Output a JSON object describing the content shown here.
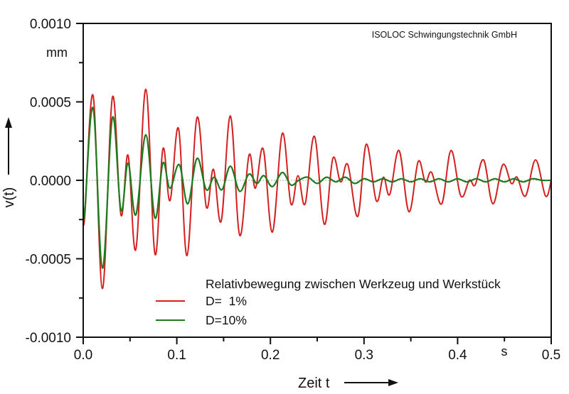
{
  "chart_data": {
    "type": "line",
    "title": "",
    "credit": "ISOLOC Schwingungstechnik GmbH",
    "xlabel": "Zeit t",
    "xunit": "s",
    "ylabel": "v(t)",
    "yunit": "mm",
    "xlim": [
      0.0,
      0.5
    ],
    "ylim": [
      -0.001,
      0.001
    ],
    "x_ticks": [
      0.0,
      0.1,
      0.2,
      0.3,
      0.4,
      0.5
    ],
    "x_tick_labels": [
      "0.0",
      "0.1",
      "0.2",
      "0.3",
      "0.4",
      "0.5"
    ],
    "x_minor_ticks": [
      0.05,
      0.15,
      0.25,
      0.35,
      0.45
    ],
    "y_ticks": [
      0.001,
      0.0005,
      0.0,
      -0.0005,
      -0.001
    ],
    "y_tick_labels": [
      "0.0010",
      "0.0005",
      "0.0000",
      "-0.0005",
      "-0.0010"
    ],
    "y_minor_ticks": [
      0.00075,
      0.00025,
      -0.00025,
      -0.00075
    ],
    "zero_line": true,
    "grid": false,
    "legend": {
      "title": "Relativbewegung zwischen Werkzeug und Werkstück",
      "position": "lower center",
      "entries": [
        "D=  1%",
        "D=10%"
      ]
    },
    "series": [
      {
        "name": "D=  1%",
        "color": "#d42020",
        "t": [
          0.0,
          0.0015,
          0.0106,
          0.0205,
          0.0312,
          0.0403,
          0.0479,
          0.0562,
          0.0669,
          0.0767,
          0.0851,
          0.0927,
          0.1018,
          0.1109,
          0.1216,
          0.1315,
          0.1391,
          0.1474,
          0.1573,
          0.1672,
          0.1771,
          0.1839,
          0.1923,
          0.2021,
          0.2128,
          0.2219,
          0.2295,
          0.2371,
          0.247,
          0.2576,
          0.2667,
          0.2751,
          0.2827,
          0.2933,
          0.3024,
          0.3131,
          0.3207,
          0.3275,
          0.3374,
          0.348,
          0.3579,
          0.3655,
          0.3723,
          0.383,
          0.3929,
          0.4035,
          0.4126,
          0.4187,
          0.4278,
          0.4377,
          0.4483,
          0.4574,
          0.4635,
          0.4726,
          0.4833,
          0.4939,
          0.5
        ],
        "v": [
          -0.00017,
          -0.00024,
          0.00054,
          -0.00069,
          0.00053,
          -0.00022,
          0.00016,
          -0.00044,
          0.00058,
          -0.00047,
          0.0002,
          -0.00013,
          0.00033,
          -0.00048,
          0.0004,
          -0.00017,
          7e-05,
          -0.00026,
          0.00041,
          -0.00035,
          0.00016,
          -5e-05,
          0.0002,
          -0.00033,
          0.0003,
          -0.00015,
          3e-05,
          -0.00015,
          0.00028,
          -0.00028,
          0.00014,
          -1e-05,
          0.0001,
          -0.00023,
          0.00023,
          -0.00013,
          2e-05,
          -9e-05,
          0.00019,
          -0.0002,
          0.00012,
          -1e-05,
          5e-05,
          -0.00015,
          0.00019,
          -0.0001,
          0.0,
          -3e-05,
          0.00013,
          -0.00015,
          0.0001,
          -2e-05,
          2e-05,
          -0.0001,
          0.00013,
          -0.0001,
          0.0
        ]
      },
      {
        "name": "D=10%",
        "color": "#1e7a1e",
        "t": [
          0.0,
          0.0015,
          0.0106,
          0.0205,
          0.0312,
          0.0403,
          0.0479,
          0.0562,
          0.0669,
          0.0767,
          0.0851,
          0.0927,
          0.1026,
          0.1117,
          0.1216,
          0.1315,
          0.1398,
          0.1482,
          0.1573,
          0.1672,
          0.1771,
          0.1854,
          0.193,
          0.2021,
          0.2128,
          0.2219,
          0.2302,
          0.24,
          0.25,
          0.26,
          0.27,
          0.28,
          0.29,
          0.3,
          0.31,
          0.32,
          0.33,
          0.34,
          0.35,
          0.36,
          0.37,
          0.38,
          0.39,
          0.4,
          0.41,
          0.42,
          0.43,
          0.44,
          0.45,
          0.46,
          0.47,
          0.48,
          0.49,
          0.5
        ],
        "v": [
          -0.00017,
          -0.00021,
          0.00046,
          -0.00056,
          0.0004,
          -0.00019,
          0.00011,
          -0.00022,
          0.00029,
          -0.00024,
          0.00011,
          -5e-05,
          0.0001,
          -0.00015,
          0.00014,
          -6e-05,
          2e-05,
          -6e-05,
          9e-05,
          -7e-05,
          4e-05,
          -2e-05,
          3e-05,
          -4e-05,
          5e-05,
          -3e-05,
          0.0,
          2e-05,
          -2e-05,
          2e-05,
          -1e-05,
          2e-05,
          -2e-05,
          1e-05,
          -1e-05,
          1e-05,
          -1e-05,
          1e-05,
          -1e-05,
          1e-05,
          -1e-05,
          1e-05,
          -1e-05,
          1e-05,
          -1e-05,
          1e-05,
          -1e-05,
          1e-05,
          -1e-05,
          1e-05,
          -1e-05,
          1e-05,
          0.0,
          0.0
        ]
      }
    ]
  },
  "colors": {
    "axis": "#111111",
    "zero_line": "#9ab09a",
    "red_series": "#d42020",
    "green_series": "#1e7a1e"
  }
}
